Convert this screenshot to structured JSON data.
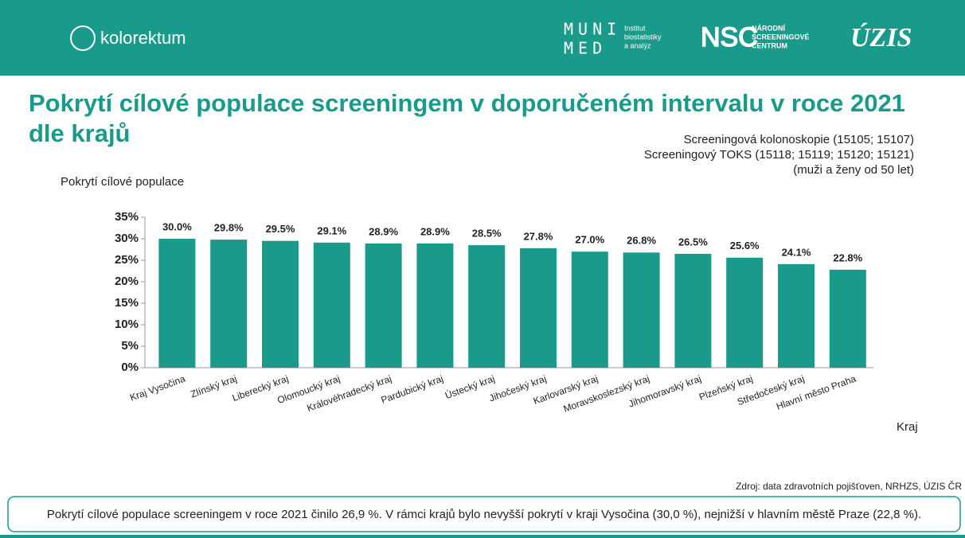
{
  "header": {
    "brand": "kolorektum",
    "muni": "MUNI",
    "med": "MED",
    "institute": [
      "Institut",
      "biostatistiky",
      "a analýz"
    ],
    "nsc": "NSC",
    "nsc_name": [
      "NÁRODNÍ",
      "SCREENINGOVÉ",
      "CENTRUM"
    ],
    "uzis": "ÚZIS"
  },
  "chart_data": {
    "type": "bar",
    "title": [
      "Pokrytí cílové populace screeningem v doporučeném intervalu v roce 2021",
      "dle krajů"
    ],
    "subtitle": [
      "Screeningová kolonoskopie (15105; 15107)",
      "Screeningový TOKS (15118; 15119; 15120; 15121)",
      "(muži a ženy od 50 let)"
    ],
    "y_label": "Pokrytí cílové populace",
    "x_label": "Kraj",
    "categories": [
      "Kraj Vysočina",
      "Zlínský kraj",
      "Liberecký kraj",
      "Olomoucký kraj",
      "Královéhradecký kraj",
      "Pardubický kraj",
      "Ústecký kraj",
      "Jihočeský kraj",
      "Karlovarský kraj",
      "Moravskoslezský kraj",
      "Jihomoravský kraj",
      "Plzeňský kraj",
      "Středočeský kraj",
      "Hlavní město Praha"
    ],
    "values": [
      30.0,
      29.8,
      29.5,
      29.1,
      28.9,
      28.9,
      28.5,
      27.8,
      27.0,
      26.8,
      26.5,
      25.6,
      24.1,
      22.8
    ],
    "value_labels": [
      "30.0%",
      "29.8%",
      "29.5%",
      "29.1%",
      "28.9%",
      "28.9%",
      "28.5%",
      "27.8%",
      "27.0%",
      "26.8%",
      "26.5%",
      "25.6%",
      "24.1%",
      "22.8%"
    ],
    "color": "#1a9a8a",
    "ylim": [
      0,
      35
    ],
    "yticks": [
      {
        "value": 0,
        "label": "0%"
      },
      {
        "value": 5,
        "label": "5%"
      },
      {
        "value": 10,
        "label": "10%"
      },
      {
        "value": 15,
        "label": "15%"
      },
      {
        "value": 20,
        "label": "20%"
      },
      {
        "value": 25,
        "label": "25%"
      },
      {
        "value": 30,
        "label": "30%"
      },
      {
        "value": 35,
        "label": "35%"
      }
    ],
    "grid": false
  },
  "source": "Zdroj: data zdravotních pojišťoven, NRHZS, ÚZIS ČR",
  "note": "Pokrytí cílové populace screeningem v roce 2021 činilo 26,9 %. V rámci krajů bylo nevyšší pokrytí v kraji Vysočina (30,0 %), nejnižší v hlavním městě Praze (22,8 %)."
}
